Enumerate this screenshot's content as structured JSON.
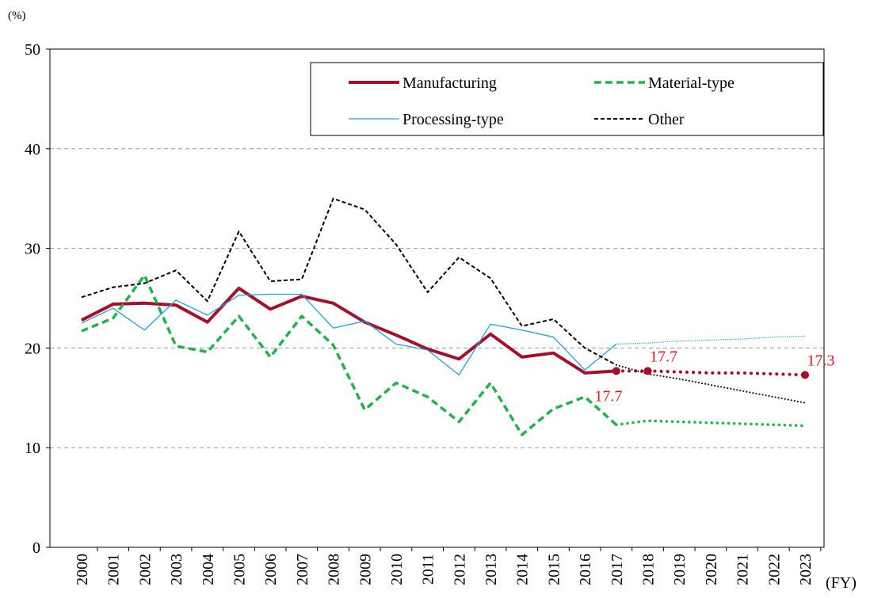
{
  "chart_data": {
    "type": "line",
    "y_unit_label": "(%)",
    "x_unit_label": "(FY)",
    "categories": [
      "2000",
      "2001",
      "2002",
      "2003",
      "2004",
      "2005",
      "2006",
      "2007",
      "2008",
      "2009",
      "2010",
      "2011",
      "2012",
      "2013",
      "2014",
      "2015",
      "2016",
      "2017",
      "2018",
      "2019",
      "2020",
      "2021",
      "2022",
      "2023"
    ],
    "ylim": [
      0,
      50
    ],
    "yticks": [
      0,
      10,
      20,
      30,
      40,
      50
    ],
    "grid": true,
    "legend": "top-right",
    "series": [
      {
        "name": "Manufacturing",
        "color": "#a50f2d",
        "width": 4,
        "style": "solid",
        "values": [
          22.8,
          24.4,
          24.5,
          24.3,
          22.6,
          26.0,
          23.9,
          25.2,
          24.5,
          22.6,
          21.3,
          19.9,
          18.9,
          21.4,
          19.1,
          19.5,
          17.5,
          17.7,
          null,
          null,
          null,
          null,
          null,
          null
        ],
        "forecast_values": [
          null,
          null,
          null,
          null,
          null,
          null,
          null,
          null,
          null,
          null,
          null,
          null,
          null,
          null,
          null,
          null,
          null,
          17.7,
          17.7,
          17.6,
          17.5,
          17.5,
          17.4,
          17.3
        ],
        "value_labels": [
          null,
          null,
          null,
          null,
          null,
          null,
          null,
          null,
          null,
          null,
          null,
          null,
          null,
          null,
          null,
          null,
          null,
          "17.7",
          "17.7",
          null,
          null,
          null,
          null,
          "17.3"
        ],
        "label_color": "#e8141e"
      },
      {
        "name": "Material-type",
        "color": "#22b14c",
        "width": 3.5,
        "style": "dashed",
        "values": [
          21.7,
          23.0,
          27.3,
          20.2,
          19.6,
          23.2,
          19.1,
          23.2,
          20.3,
          13.8,
          16.5,
          15.1,
          12.6,
          16.5,
          11.3,
          13.9,
          15.1,
          12.3,
          null,
          null,
          null,
          null,
          null,
          null
        ],
        "forecast_values": [
          null,
          null,
          null,
          null,
          null,
          null,
          null,
          null,
          null,
          null,
          null,
          null,
          null,
          null,
          null,
          null,
          null,
          12.3,
          12.7,
          12.6,
          12.5,
          12.4,
          12.3,
          12.2
        ]
      },
      {
        "name": "Processing-type",
        "color": "#1ea0dc",
        "width": 1.3,
        "style": "solid",
        "values": [
          22.5,
          24.0,
          21.8,
          24.8,
          23.3,
          25.3,
          25.4,
          25.4,
          22.0,
          22.7,
          20.4,
          19.8,
          17.3,
          22.4,
          21.8,
          21.1,
          17.8,
          20.4,
          null,
          null,
          null,
          null,
          null,
          null
        ],
        "forecast_values": [
          null,
          null,
          null,
          null,
          null,
          null,
          null,
          null,
          null,
          null,
          null,
          null,
          null,
          null,
          null,
          null,
          null,
          20.4,
          20.5,
          20.7,
          20.8,
          20.9,
          21.1,
          21.2
        ]
      },
      {
        "name": "Other",
        "color": "#000000",
        "width": 2,
        "style": "dashed",
        "values": [
          25.1,
          26.1,
          26.5,
          27.8,
          24.7,
          31.7,
          26.7,
          26.9,
          35.0,
          33.9,
          30.4,
          25.6,
          29.1,
          27.0,
          22.2,
          22.9,
          20.0,
          18.3,
          null,
          null,
          null,
          null,
          null,
          null
        ],
        "forecast_values": [
          null,
          null,
          null,
          null,
          null,
          null,
          null,
          null,
          null,
          null,
          null,
          null,
          null,
          null,
          null,
          null,
          null,
          18.3,
          17.4,
          16.9,
          16.3,
          15.7,
          15.1,
          14.5
        ]
      }
    ]
  }
}
